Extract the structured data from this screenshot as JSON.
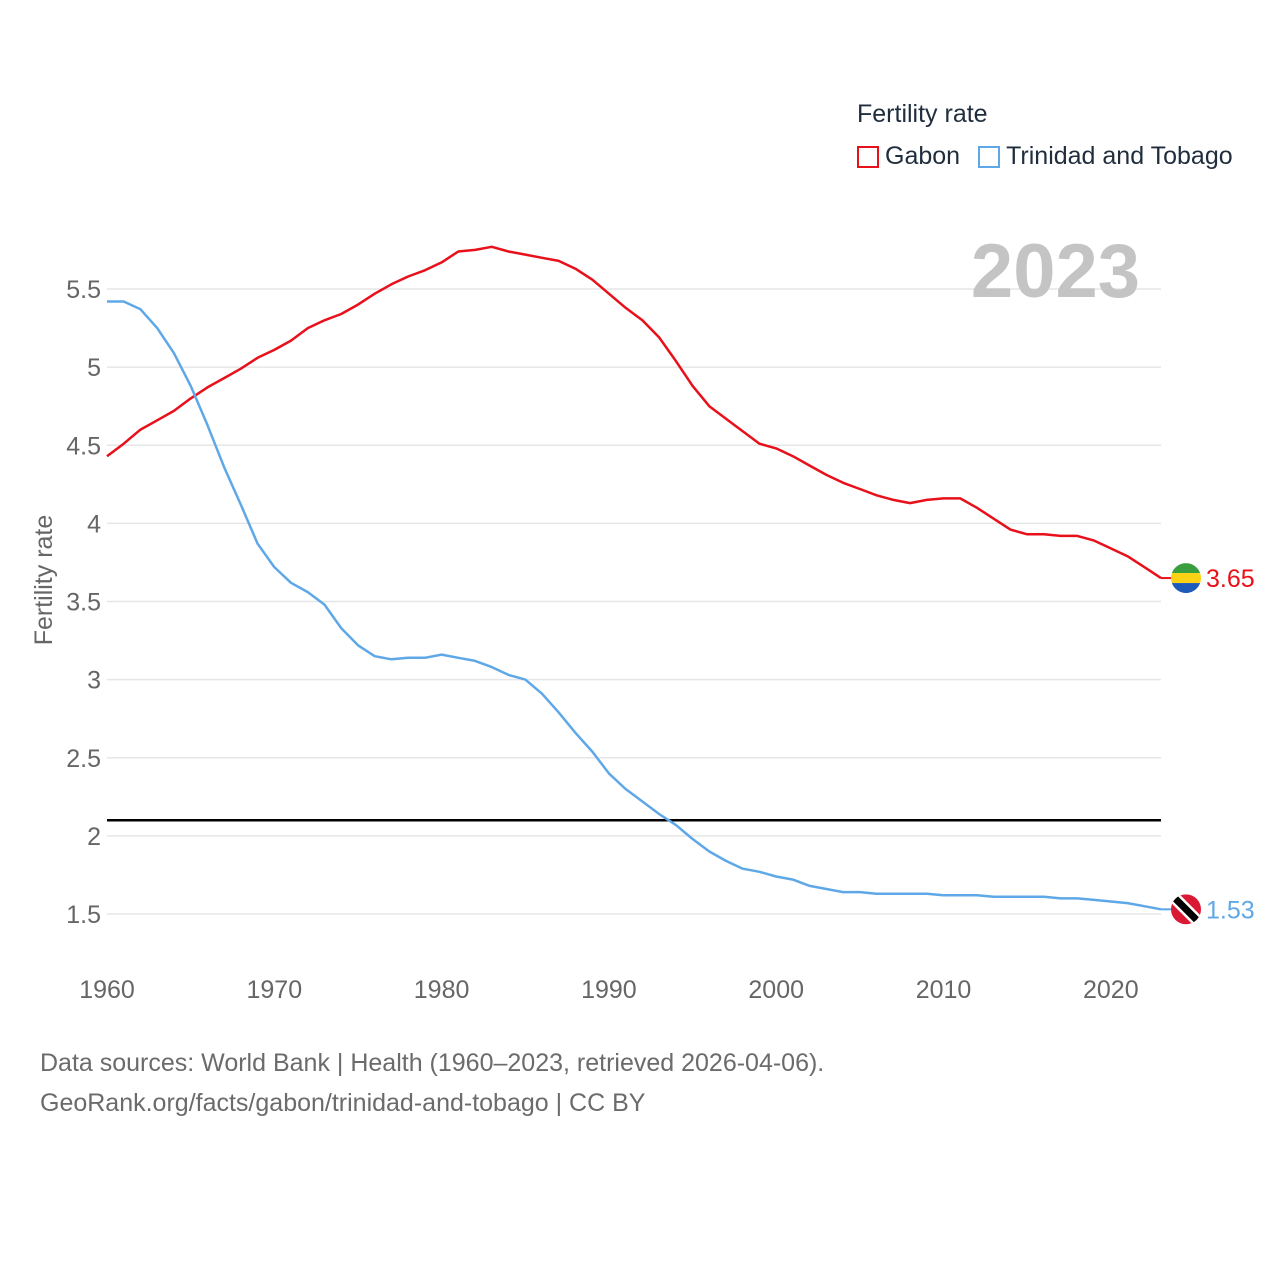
{
  "chart_data": {
    "type": "line",
    "ylabel": "Fertility rate",
    "xlabel": "",
    "legend_title": "Fertility rate",
    "legend_position": "top-right",
    "year_badge": "2023",
    "xlim": [
      1960,
      2023
    ],
    "ylim": [
      1.25,
      5.75
    ],
    "x_ticks": [
      1960,
      1970,
      1980,
      1990,
      2000,
      2010,
      2020
    ],
    "y_ticks": [
      1.5,
      2,
      2.5,
      3,
      3.5,
      4,
      4.5,
      5,
      5.5
    ],
    "y_tick_labels": [
      "1.5",
      "2",
      "2.5",
      "3",
      "3.5",
      "4",
      "4.5",
      "5",
      "5.5"
    ],
    "reference_line": 2.1,
    "grid": true,
    "x": [
      1960,
      1961,
      1962,
      1963,
      1964,
      1965,
      1966,
      1967,
      1968,
      1969,
      1970,
      1971,
      1972,
      1973,
      1974,
      1975,
      1976,
      1977,
      1978,
      1979,
      1980,
      1981,
      1982,
      1983,
      1984,
      1985,
      1986,
      1987,
      1988,
      1989,
      1990,
      1991,
      1992,
      1993,
      1994,
      1995,
      1996,
      1997,
      1998,
      1999,
      2000,
      2001,
      2002,
      2003,
      2004,
      2005,
      2006,
      2007,
      2008,
      2009,
      2010,
      2011,
      2012,
      2013,
      2014,
      2015,
      2016,
      2017,
      2018,
      2019,
      2020,
      2021,
      2022,
      2023
    ],
    "series": [
      {
        "name": "Gabon",
        "color": "#e8101a",
        "end_label": "3.65",
        "flag": "gabon-flag",
        "values": [
          4.43,
          4.51,
          4.6,
          4.66,
          4.72,
          4.8,
          4.87,
          4.93,
          4.99,
          5.06,
          5.11,
          5.17,
          5.25,
          5.3,
          5.34,
          5.4,
          5.47,
          5.53,
          5.58,
          5.62,
          5.67,
          5.74,
          5.75,
          5.77,
          5.74,
          5.72,
          5.7,
          5.68,
          5.63,
          5.56,
          5.47,
          5.38,
          5.3,
          5.19,
          5.04,
          4.88,
          4.75,
          4.67,
          4.59,
          4.51,
          4.48,
          4.43,
          4.37,
          4.31,
          4.26,
          4.22,
          4.18,
          4.15,
          4.13,
          4.15,
          4.16,
          4.16,
          4.1,
          4.03,
          3.96,
          3.93,
          3.93,
          3.92,
          3.92,
          3.89,
          3.84,
          3.79,
          3.72,
          3.65
        ]
      },
      {
        "name": "Trinidad and Tobago",
        "color": "#5fa8e8",
        "end_label": "1.53",
        "flag": "trinidad-and-tobago-flag",
        "values": [
          5.42,
          5.42,
          5.37,
          5.25,
          5.09,
          4.88,
          4.63,
          4.36,
          4.12,
          3.87,
          3.72,
          3.62,
          3.56,
          3.48,
          3.33,
          3.22,
          3.15,
          3.13,
          3.14,
          3.14,
          3.16,
          3.14,
          3.12,
          3.08,
          3.03,
          3.0,
          2.91,
          2.79,
          2.66,
          2.54,
          2.4,
          2.3,
          2.22,
          2.14,
          2.07,
          1.98,
          1.9,
          1.84,
          1.79,
          1.77,
          1.74,
          1.72,
          1.68,
          1.66,
          1.64,
          1.64,
          1.63,
          1.63,
          1.63,
          1.63,
          1.62,
          1.62,
          1.62,
          1.61,
          1.61,
          1.61,
          1.61,
          1.6,
          1.6,
          1.59,
          1.58,
          1.57,
          1.55,
          1.53
        ]
      }
    ]
  },
  "footer": {
    "line1": "Data sources: World Bank | Health (1960–2023, retrieved 2026-04-06).",
    "line2": "GeoRank.org/facts/gabon/trinidad-and-tobago | CC BY"
  }
}
